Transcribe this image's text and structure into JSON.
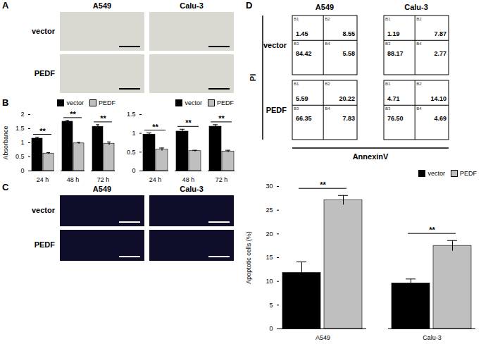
{
  "panel_labels": [
    "A",
    "B",
    "C",
    "D"
  ],
  "panel_A": {
    "columns": [
      "A549",
      "Calu-3"
    ],
    "rows": [
      "vector",
      "PEDF"
    ]
  },
  "panel_C": {
    "columns": [
      "A549",
      "Calu-3"
    ],
    "rows": [
      "vector",
      "PEDF"
    ]
  },
  "panel_D_flow": {
    "columns": [
      "A549",
      "Calu-3"
    ],
    "rows": [
      "vector",
      "PEDF"
    ],
    "x_label": "AnnexinV",
    "y_label": "PI",
    "quadrant_names": [
      "B1",
      "B2",
      "B3",
      "B4"
    ],
    "quadrants": [
      [
        [
          1.45,
          8.55,
          84.42,
          5.58
        ],
        [
          1.19,
          7.87,
          88.17,
          2.77
        ]
      ],
      [
        [
          5.59,
          20.22,
          66.35,
          7.83
        ],
        [
          4.71,
          {
            "value": 14.1,
            "label": "14.10"
          },
          {
            "value": 76.5,
            "label": "76.50"
          },
          4.69
        ]
      ]
    ]
  },
  "chart_data": [
    {
      "type": "bar",
      "y_label": "Absorbance",
      "categories": [
        "24 h",
        "48 h",
        "72 h"
      ],
      "series": [
        {
          "name": "vector",
          "color": "#000000",
          "values": [
            1.15,
            1.75,
            1.57
          ],
          "errors": [
            0.05,
            0.04,
            0.07
          ]
        },
        {
          "name": "PEDF",
          "color": "#bfbfbf",
          "values": [
            0.62,
            0.98,
            0.97
          ],
          "errors": [
            0.03,
            0.03,
            0.06
          ]
        }
      ],
      "significance": [
        "**",
        "**",
        "**"
      ],
      "ylim": [
        0,
        2
      ],
      "yticks": [
        0,
        0.5,
        1,
        1.5,
        2
      ],
      "legend": "top-right"
    },
    {
      "type": "bar",
      "categories": [
        "24 h",
        "48 h",
        "72 h"
      ],
      "series": [
        {
          "name": "vector",
          "color": "#000000",
          "values": [
            0.97,
            1.05,
            1.18
          ],
          "errors": [
            0.04,
            0.06,
            0.05
          ]
        },
        {
          "name": "PEDF",
          "color": "#bfbfbf",
          "values": [
            0.57,
            0.53,
            0.52
          ],
          "errors": [
            0.04,
            0.02,
            0.03
          ]
        }
      ],
      "significance": [
        "**",
        "**",
        "**"
      ],
      "ylim": [
        0,
        1.5
      ],
      "yticks": [
        0,
        0.5,
        1,
        1.5
      ],
      "legend": "top-right"
    },
    {
      "type": "bar",
      "y_label": "Apoptotic cells (%)",
      "categories": [
        "A549",
        "Calu-3"
      ],
      "series": [
        {
          "name": "vector",
          "color": "#000000",
          "values": [
            11.8,
            9.6
          ],
          "errors": [
            2.3,
            0.9
          ]
        },
        {
          "name": "PEDF",
          "color": "#bfbfbf",
          "values": [
            27.1,
            17.5
          ],
          "errors": [
            1.0,
            1.1
          ]
        }
      ],
      "significance": [
        "**",
        "**"
      ],
      "ylim": [
        0,
        30
      ],
      "yticks": [
        0,
        5,
        10,
        15,
        20,
        25,
        30
      ],
      "legend": "top-right"
    }
  ]
}
